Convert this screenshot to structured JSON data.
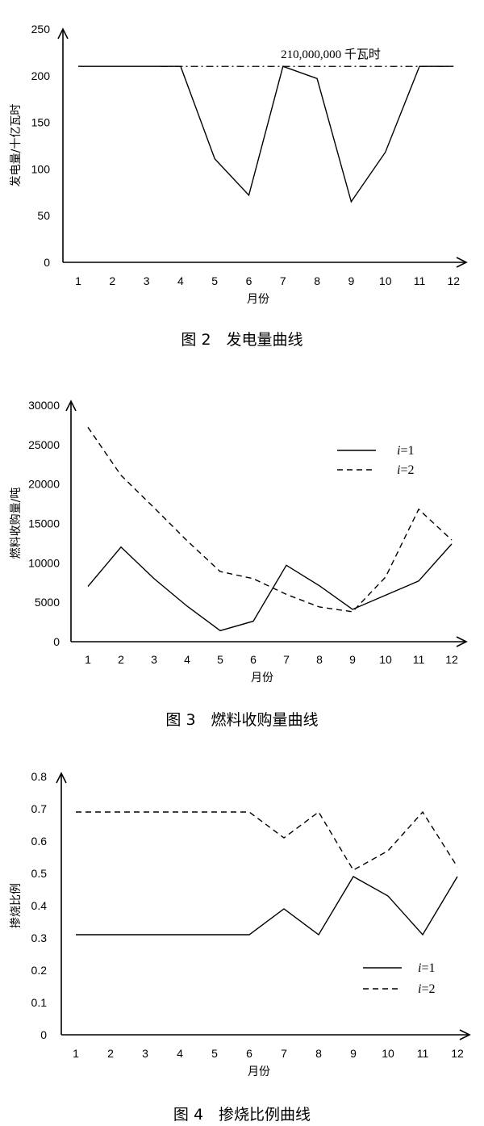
{
  "chart_data": [
    {
      "type": "line",
      "caption": "图 2　发电量曲线",
      "xlabel": "月份",
      "ylabel": "发电量/十亿瓦时",
      "categories": [
        "1",
        "2",
        "3",
        "4",
        "5",
        "6",
        "7",
        "8",
        "9",
        "10",
        "11",
        "12"
      ],
      "yticks": [
        "0",
        "50",
        "100",
        "150",
        "200",
        "250"
      ],
      "ylim": [
        0,
        250
      ],
      "series": [
        {
          "name": "",
          "style": "solid",
          "values": [
            210,
            210,
            210,
            210,
            111,
            72,
            210,
            197,
            65,
            118,
            210,
            210
          ]
        }
      ],
      "reference_line": {
        "value": 210,
        "label": "210,000,000 千瓦时",
        "style": "dash-dot"
      }
    },
    {
      "type": "line",
      "caption": "图 3　燃料收购量曲线",
      "xlabel": "月份",
      "ylabel": "燃料收购量/吨",
      "categories": [
        "1",
        "2",
        "3",
        "4",
        "5",
        "6",
        "7",
        "8",
        "9",
        "10",
        "11",
        "12"
      ],
      "yticks": [
        "0",
        "5000",
        "10000",
        "15000",
        "20000",
        "25000",
        "30000"
      ],
      "ylim": [
        0,
        30000
      ],
      "legend": "top-right",
      "series": [
        {
          "name": "=1",
          "legend_italic": "i",
          "style": "solid",
          "values": [
            7000,
            12000,
            8000,
            4500,
            1400,
            2600,
            9700,
            7100,
            4100,
            5900,
            7700,
            12400
          ]
        },
        {
          "name": "=2",
          "legend_italic": "i",
          "style": "dashed",
          "values": [
            27200,
            21100,
            17000,
            12800,
            8900,
            8000,
            6000,
            4400,
            3800,
            8200,
            16800,
            12900
          ]
        }
      ]
    },
    {
      "type": "line",
      "caption": "图 4　掺烧比例曲线",
      "xlabel": "月份",
      "ylabel": "掺烧比例",
      "categories": [
        "1",
        "2",
        "3",
        "4",
        "5",
        "6",
        "7",
        "8",
        "9",
        "10",
        "11",
        "12"
      ],
      "yticks": [
        "0",
        "0.1",
        "0.2",
        "0.3",
        "0.4",
        "0.5",
        "0.6",
        "0.7",
        "0.8"
      ],
      "ylim": [
        0,
        0.8
      ],
      "legend": "bottom-right",
      "series": [
        {
          "name": "=1",
          "legend_italic": "i",
          "style": "solid",
          "values": [
            0.31,
            0.31,
            0.31,
            0.31,
            0.31,
            0.31,
            0.39,
            0.31,
            0.49,
            0.43,
            0.31,
            0.49
          ]
        },
        {
          "name": "=2",
          "legend_italic": "i",
          "style": "dashed",
          "values": [
            0.69,
            0.69,
            0.69,
            0.69,
            0.69,
            0.69,
            0.61,
            0.69,
            0.51,
            0.57,
            0.69,
            0.52
          ]
        }
      ]
    }
  ]
}
